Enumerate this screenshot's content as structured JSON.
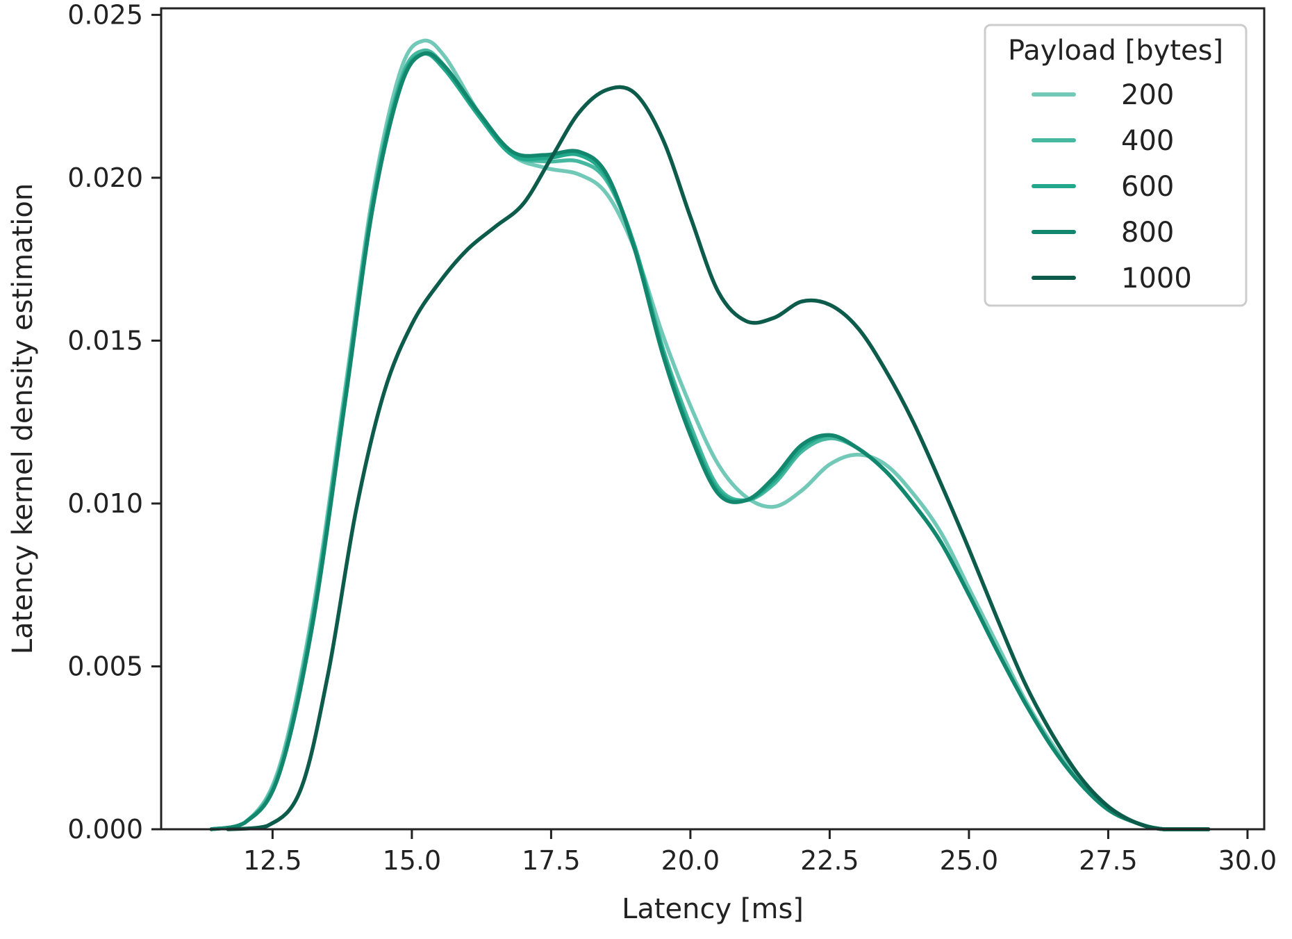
{
  "chart_data": {
    "type": "line",
    "xlabel": "Latency [ms]",
    "ylabel": "Latency kernel density estimation",
    "xlim": [
      10.5,
      30.3
    ],
    "ylim": [
      0,
      0.0252
    ],
    "xticks": [
      12.5,
      15.0,
      17.5,
      20.0,
      22.5,
      25.0,
      27.5,
      30.0
    ],
    "xtick_labels": [
      "12.5",
      "15.0",
      "17.5",
      "20.0",
      "22.5",
      "25.0",
      "27.5",
      "30.0"
    ],
    "yticks": [
      0,
      0.005,
      0.01,
      0.015,
      0.02,
      0.025
    ],
    "ytick_labels": [
      "0.000",
      "0.005",
      "0.010",
      "0.015",
      "0.020",
      "0.025"
    ],
    "grid": false,
    "legend": {
      "title": "Payload [bytes]",
      "position": "top-right"
    },
    "series": [
      {
        "name": "200",
        "color": "#72c9b8",
        "points": [
          [
            11.4,
            0
          ],
          [
            12.0,
            0.0002
          ],
          [
            12.6,
            0.0018
          ],
          [
            13.2,
            0.0065
          ],
          [
            13.8,
            0.0135
          ],
          [
            14.3,
            0.0195
          ],
          [
            14.8,
            0.0233
          ],
          [
            15.2,
            0.0242
          ],
          [
            15.6,
            0.0237
          ],
          [
            16.2,
            0.022
          ],
          [
            16.8,
            0.0207
          ],
          [
            17.4,
            0.0203
          ],
          [
            18.0,
            0.0201
          ],
          [
            18.5,
            0.0195
          ],
          [
            19.0,
            0.0178
          ],
          [
            19.5,
            0.0152
          ],
          [
            20.0,
            0.013
          ],
          [
            20.5,
            0.0112
          ],
          [
            21.0,
            0.0102
          ],
          [
            21.5,
            0.0099
          ],
          [
            22.0,
            0.0104
          ],
          [
            22.5,
            0.0112
          ],
          [
            23.0,
            0.0115
          ],
          [
            23.5,
            0.0112
          ],
          [
            24.0,
            0.0103
          ],
          [
            24.5,
            0.0091
          ],
          [
            25.0,
            0.0074
          ],
          [
            25.5,
            0.0057
          ],
          [
            26.0,
            0.004
          ],
          [
            26.5,
            0.0026
          ],
          [
            27.0,
            0.0015
          ],
          [
            27.5,
            0.0007
          ],
          [
            28.0,
            0.0002
          ],
          [
            28.5,
            0
          ],
          [
            29.3,
            0
          ]
        ]
      },
      {
        "name": "400",
        "color": "#46b8a0",
        "points": [
          [
            11.4,
            0
          ],
          [
            12.0,
            0.0002
          ],
          [
            12.6,
            0.0017
          ],
          [
            13.2,
            0.0063
          ],
          [
            13.8,
            0.0133
          ],
          [
            14.3,
            0.0193
          ],
          [
            14.8,
            0.023
          ],
          [
            15.2,
            0.0239
          ],
          [
            15.6,
            0.0234
          ],
          [
            16.2,
            0.0219
          ],
          [
            16.8,
            0.0207
          ],
          [
            17.4,
            0.0205
          ],
          [
            18.0,
            0.0205
          ],
          [
            18.5,
            0.0199
          ],
          [
            19.0,
            0.0179
          ],
          [
            19.5,
            0.0148
          ],
          [
            20.0,
            0.0124
          ],
          [
            20.5,
            0.0105
          ],
          [
            21.0,
            0.0101
          ],
          [
            21.5,
            0.0106
          ],
          [
            22.0,
            0.0116
          ],
          [
            22.5,
            0.012
          ],
          [
            23.0,
            0.0117
          ],
          [
            23.5,
            0.011
          ],
          [
            24.0,
            0.01
          ],
          [
            24.5,
            0.0088
          ],
          [
            25.0,
            0.0072
          ],
          [
            25.5,
            0.0055
          ],
          [
            26.0,
            0.0039
          ],
          [
            26.5,
            0.0025
          ],
          [
            27.0,
            0.0014
          ],
          [
            27.5,
            0.0006
          ],
          [
            28.0,
            0.0002
          ],
          [
            28.5,
            0
          ],
          [
            29.3,
            0
          ]
        ]
      },
      {
        "name": "600",
        "color": "#22a88b",
        "points": [
          [
            11.4,
            0
          ],
          [
            12.0,
            0.0002
          ],
          [
            12.6,
            0.0016
          ],
          [
            13.2,
            0.0062
          ],
          [
            13.8,
            0.0132
          ],
          [
            14.3,
            0.0192
          ],
          [
            14.8,
            0.0229
          ],
          [
            15.2,
            0.0238
          ],
          [
            15.6,
            0.0233
          ],
          [
            16.2,
            0.0219
          ],
          [
            16.8,
            0.0207
          ],
          [
            17.4,
            0.0206
          ],
          [
            18.0,
            0.0207
          ],
          [
            18.5,
            0.02
          ],
          [
            19.0,
            0.0179
          ],
          [
            19.5,
            0.0147
          ],
          [
            20.0,
            0.0122
          ],
          [
            20.5,
            0.0104
          ],
          [
            21.0,
            0.0101
          ],
          [
            21.5,
            0.0107
          ],
          [
            22.0,
            0.0117
          ],
          [
            22.5,
            0.0121
          ],
          [
            23.0,
            0.0117
          ],
          [
            23.5,
            0.011
          ],
          [
            24.0,
            0.01
          ],
          [
            24.5,
            0.0088
          ],
          [
            25.0,
            0.0072
          ],
          [
            25.5,
            0.0055
          ],
          [
            26.0,
            0.0039
          ],
          [
            26.5,
            0.0025
          ],
          [
            27.0,
            0.0014
          ],
          [
            27.5,
            0.0006
          ],
          [
            28.0,
            0.0002
          ],
          [
            28.5,
            0
          ],
          [
            29.3,
            0
          ]
        ]
      },
      {
        "name": "800",
        "color": "#12876e",
        "points": [
          [
            11.4,
            0
          ],
          [
            12.0,
            0.0002
          ],
          [
            12.6,
            0.0016
          ],
          [
            13.2,
            0.0061
          ],
          [
            13.8,
            0.0131
          ],
          [
            14.3,
            0.0191
          ],
          [
            14.8,
            0.0228
          ],
          [
            15.2,
            0.0238
          ],
          [
            15.6,
            0.0234
          ],
          [
            16.2,
            0.022
          ],
          [
            16.8,
            0.0208
          ],
          [
            17.4,
            0.0207
          ],
          [
            18.0,
            0.0208
          ],
          [
            18.5,
            0.0201
          ],
          [
            19.0,
            0.0178
          ],
          [
            19.5,
            0.0146
          ],
          [
            20.0,
            0.0121
          ],
          [
            20.5,
            0.0103
          ],
          [
            21.0,
            0.0101
          ],
          [
            21.5,
            0.0108
          ],
          [
            22.0,
            0.0118
          ],
          [
            22.5,
            0.0121
          ],
          [
            23.0,
            0.0117
          ],
          [
            23.5,
            0.011
          ],
          [
            24.0,
            0.01
          ],
          [
            24.5,
            0.0088
          ],
          [
            25.0,
            0.0072
          ],
          [
            25.5,
            0.0055
          ],
          [
            26.0,
            0.0039
          ],
          [
            26.5,
            0.0025
          ],
          [
            27.0,
            0.0014
          ],
          [
            27.5,
            0.0006
          ],
          [
            28.0,
            0.0002
          ],
          [
            28.5,
            0
          ],
          [
            29.3,
            0
          ]
        ]
      },
      {
        "name": "1000",
        "color": "#0d5c4b",
        "points": [
          [
            11.7,
            0
          ],
          [
            12.4,
            0.0001
          ],
          [
            13.0,
            0.0012
          ],
          [
            13.5,
            0.0048
          ],
          [
            14.0,
            0.0098
          ],
          [
            14.5,
            0.0134
          ],
          [
            15.0,
            0.0155
          ],
          [
            15.5,
            0.0168
          ],
          [
            16.0,
            0.0178
          ],
          [
            16.5,
            0.0185
          ],
          [
            17.0,
            0.0192
          ],
          [
            17.5,
            0.0206
          ],
          [
            18.0,
            0.022
          ],
          [
            18.5,
            0.0227
          ],
          [
            19.0,
            0.0226
          ],
          [
            19.5,
            0.0212
          ],
          [
            20.0,
            0.0188
          ],
          [
            20.5,
            0.0165
          ],
          [
            21.0,
            0.0156
          ],
          [
            21.5,
            0.0157
          ],
          [
            22.0,
            0.0162
          ],
          [
            22.5,
            0.0161
          ],
          [
            23.0,
            0.0154
          ],
          [
            23.5,
            0.0141
          ],
          [
            24.0,
            0.0125
          ],
          [
            24.5,
            0.0106
          ],
          [
            25.0,
            0.0086
          ],
          [
            25.5,
            0.0065
          ],
          [
            26.0,
            0.0045
          ],
          [
            26.5,
            0.0029
          ],
          [
            27.0,
            0.0016
          ],
          [
            27.5,
            0.0007
          ],
          [
            28.0,
            0.0002
          ],
          [
            28.5,
            0
          ],
          [
            29.3,
            0
          ]
        ]
      }
    ]
  }
}
